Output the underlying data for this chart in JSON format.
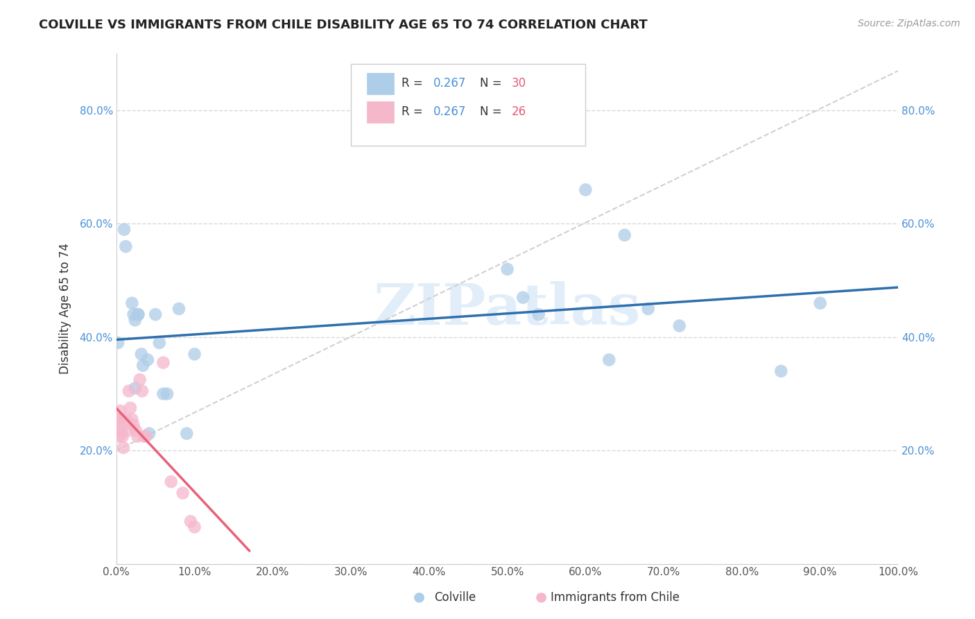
{
  "title": "COLVILLE VS IMMIGRANTS FROM CHILE DISABILITY AGE 65 TO 74 CORRELATION CHART",
  "source": "Source: ZipAtlas.com",
  "ylabel": "Disability Age 65 to 74",
  "legend_labels": [
    "Colville",
    "Immigrants from Chile"
  ],
  "legend_r_n": [
    {
      "R": "0.267",
      "N": "30"
    },
    {
      "R": "0.267",
      "N": "26"
    }
  ],
  "colville_x": [
    0.002,
    0.01,
    0.012,
    0.02,
    0.022,
    0.024,
    0.024,
    0.028,
    0.028,
    0.032,
    0.034,
    0.04,
    0.042,
    0.05,
    0.055,
    0.06,
    0.065,
    0.08,
    0.09,
    0.1,
    0.5,
    0.52,
    0.54,
    0.6,
    0.63,
    0.65,
    0.68,
    0.72,
    0.85,
    0.9
  ],
  "colville_y": [
    0.39,
    0.59,
    0.56,
    0.46,
    0.44,
    0.43,
    0.31,
    0.44,
    0.44,
    0.37,
    0.35,
    0.36,
    0.23,
    0.44,
    0.39,
    0.3,
    0.3,
    0.45,
    0.23,
    0.37,
    0.52,
    0.47,
    0.44,
    0.66,
    0.36,
    0.58,
    0.45,
    0.42,
    0.34,
    0.46
  ],
  "chile_x": [
    0.001,
    0.002,
    0.003,
    0.004,
    0.005,
    0.006,
    0.007,
    0.008,
    0.009,
    0.012,
    0.014,
    0.016,
    0.018,
    0.02,
    0.022,
    0.025,
    0.027,
    0.03,
    0.033,
    0.036,
    0.038,
    0.06,
    0.07,
    0.085,
    0.095,
    0.1
  ],
  "chile_y": [
    0.255,
    0.25,
    0.235,
    0.225,
    0.27,
    0.255,
    0.24,
    0.225,
    0.205,
    0.255,
    0.235,
    0.305,
    0.275,
    0.255,
    0.245,
    0.235,
    0.225,
    0.325,
    0.305,
    0.225,
    0.225,
    0.355,
    0.145,
    0.125,
    0.075,
    0.065
  ],
  "colville_color": "#aecde8",
  "chile_color": "#f5b8cb",
  "colville_line_color": "#2e6fad",
  "chile_line_color": "#e8607a",
  "dash_line_color": "#d0d0d0",
  "background_color": "#ffffff",
  "grid_color": "#d8d8d8",
  "watermark": "ZIPatlas",
  "xlim": [
    0.0,
    1.0
  ],
  "ylim": [
    0.0,
    0.9
  ],
  "xticks": [
    0.0,
    0.1,
    0.2,
    0.3,
    0.4,
    0.5,
    0.6,
    0.7,
    0.8,
    0.9,
    1.0
  ],
  "yticks": [
    0.0,
    0.2,
    0.4,
    0.6,
    0.8
  ],
  "xticklabels": [
    "0.0%",
    "10.0%",
    "20.0%",
    "30.0%",
    "40.0%",
    "50.0%",
    "60.0%",
    "70.0%",
    "80.0%",
    "90.0%",
    "100.0%"
  ],
  "yticklabels": [
    "",
    "20.0%",
    "40.0%",
    "60.0%",
    "80.0%"
  ]
}
